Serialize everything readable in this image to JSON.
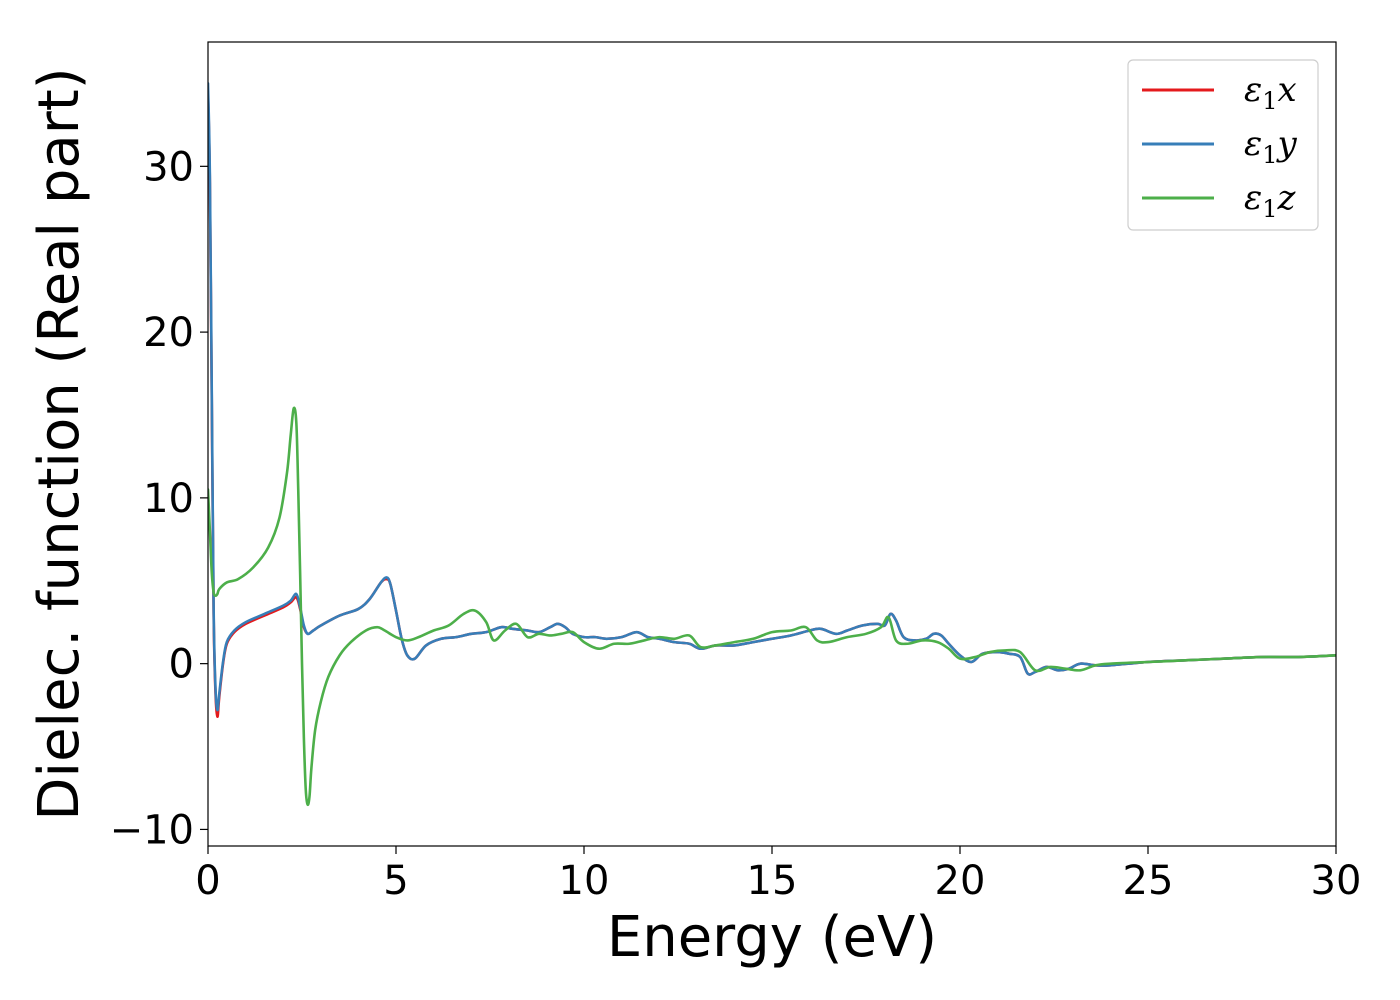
{
  "chart_data": {
    "type": "line",
    "title": "",
    "xlabel": "Energy (eV)",
    "ylabel": "Dielec. function (Real part)",
    "xlim": [
      0,
      30
    ],
    "ylim": [
      -11,
      37.5
    ],
    "xticks": [
      0,
      5,
      10,
      15,
      20,
      25,
      30
    ],
    "xtick_labels": [
      "0",
      "5",
      "10",
      "15",
      "20",
      "25",
      "30"
    ],
    "yticks": [
      -10,
      0,
      10,
      20,
      30
    ],
    "ytick_labels": [
      "−10",
      "0",
      "10",
      "20",
      "30"
    ],
    "grid": false,
    "legend_position": "top-right",
    "series": [
      {
        "name": "ε₁x",
        "legend": {
          "base": "ε",
          "sub": "1",
          "axis": "x"
        },
        "color": "#e41a1c",
        "x": [
          0.0,
          0.05,
          0.1,
          0.15,
          0.2,
          0.25,
          0.3,
          0.4,
          0.5,
          0.7,
          1.0,
          1.5,
          2.0,
          2.2,
          2.35,
          2.45,
          2.55,
          2.65,
          2.8,
          3.0,
          3.5,
          4.0,
          4.3,
          4.6,
          4.75,
          4.85,
          5.0,
          5.15,
          5.3,
          5.5,
          5.8,
          6.2,
          6.6,
          7.0,
          7.4,
          7.8,
          8.1,
          8.5,
          8.8,
          9.1,
          9.3,
          9.5,
          9.7,
          10.0,
          10.3,
          10.6,
          11.0,
          11.4,
          11.7,
          12.0,
          12.4,
          12.8,
          13.1,
          13.5,
          14.0,
          14.5,
          15.0,
          15.5,
          16.0,
          16.3,
          16.7,
          17.0,
          17.4,
          17.8,
          18.0,
          18.15,
          18.3,
          18.5,
          18.8,
          19.1,
          19.3,
          19.5,
          19.7,
          20.0,
          20.3,
          20.6,
          21.0,
          21.3,
          21.6,
          21.8,
          22.0,
          22.3,
          22.6,
          22.9,
          23.2,
          23.6,
          24.0,
          25.0,
          26.0,
          27.0,
          28.0,
          29.0,
          30.0
        ],
        "y": [
          34.5,
          29.0,
          16.0,
          3.0,
          -1.8,
          -3.2,
          -2.0,
          0.0,
          1.2,
          1.9,
          2.4,
          2.9,
          3.4,
          3.7,
          4.0,
          3.3,
          2.2,
          1.8,
          2.0,
          2.3,
          2.9,
          3.3,
          3.9,
          4.9,
          5.1,
          4.8,
          3.2,
          1.5,
          0.5,
          0.3,
          1.1,
          1.5,
          1.6,
          1.8,
          1.9,
          2.2,
          2.1,
          2.0,
          1.9,
          2.2,
          2.4,
          2.2,
          1.8,
          1.6,
          1.6,
          1.5,
          1.6,
          1.9,
          1.6,
          1.5,
          1.3,
          1.2,
          0.9,
          1.1,
          1.1,
          1.3,
          1.5,
          1.7,
          2.0,
          2.1,
          1.8,
          2.0,
          2.3,
          2.4,
          2.3,
          3.0,
          2.6,
          1.6,
          1.4,
          1.5,
          1.8,
          1.7,
          1.2,
          0.5,
          0.1,
          0.6,
          0.7,
          0.6,
          0.4,
          -0.6,
          -0.5,
          -0.2,
          -0.4,
          -0.3,
          0.0,
          -0.1,
          -0.1,
          0.1,
          0.2,
          0.3,
          0.4,
          0.4,
          0.5
        ]
      },
      {
        "name": "ε₁y",
        "legend": {
          "base": "ε",
          "sub": "1",
          "axis": "y"
        },
        "color": "#377eb8",
        "x": [
          0.0,
          0.05,
          0.1,
          0.15,
          0.2,
          0.25,
          0.3,
          0.4,
          0.5,
          0.7,
          1.0,
          1.5,
          2.0,
          2.2,
          2.35,
          2.45,
          2.55,
          2.65,
          2.8,
          3.0,
          3.5,
          4.0,
          4.3,
          4.6,
          4.75,
          4.85,
          5.0,
          5.15,
          5.3,
          5.5,
          5.8,
          6.2,
          6.6,
          7.0,
          7.4,
          7.8,
          8.1,
          8.5,
          8.8,
          9.1,
          9.3,
          9.5,
          9.7,
          10.0,
          10.3,
          10.6,
          11.0,
          11.4,
          11.7,
          12.0,
          12.4,
          12.8,
          13.1,
          13.5,
          14.0,
          14.5,
          15.0,
          15.5,
          16.0,
          16.3,
          16.7,
          17.0,
          17.4,
          17.8,
          18.0,
          18.15,
          18.3,
          18.5,
          18.8,
          19.1,
          19.3,
          19.5,
          19.7,
          20.0,
          20.3,
          20.6,
          21.0,
          21.3,
          21.6,
          21.8,
          22.0,
          22.3,
          22.6,
          22.9,
          23.2,
          23.6,
          24.0,
          25.0,
          26.0,
          27.0,
          28.0,
          29.0,
          30.0
        ],
        "y": [
          35.0,
          29.5,
          16.5,
          3.3,
          -1.5,
          -2.8,
          -1.8,
          0.1,
          1.3,
          2.0,
          2.5,
          3.0,
          3.5,
          3.8,
          4.2,
          3.4,
          2.3,
          1.8,
          2.0,
          2.3,
          2.9,
          3.3,
          3.9,
          4.9,
          5.2,
          4.8,
          3.2,
          1.5,
          0.5,
          0.3,
          1.1,
          1.5,
          1.6,
          1.8,
          1.9,
          2.2,
          2.1,
          2.0,
          1.9,
          2.2,
          2.4,
          2.2,
          1.8,
          1.6,
          1.6,
          1.5,
          1.6,
          1.9,
          1.6,
          1.5,
          1.3,
          1.2,
          0.9,
          1.1,
          1.1,
          1.3,
          1.5,
          1.7,
          2.0,
          2.1,
          1.8,
          2.0,
          2.3,
          2.4,
          2.3,
          3.0,
          2.6,
          1.6,
          1.4,
          1.5,
          1.8,
          1.7,
          1.2,
          0.5,
          0.1,
          0.6,
          0.7,
          0.6,
          0.4,
          -0.6,
          -0.5,
          -0.2,
          -0.4,
          -0.3,
          0.0,
          -0.1,
          -0.1,
          0.1,
          0.2,
          0.3,
          0.4,
          0.4,
          0.5
        ]
      },
      {
        "name": "ε₁z",
        "legend": {
          "base": "ε",
          "sub": "1",
          "axis": "z"
        },
        "color": "#4daf4a",
        "x": [
          0.0,
          0.05,
          0.1,
          0.15,
          0.2,
          0.25,
          0.3,
          0.5,
          0.8,
          1.2,
          1.6,
          1.9,
          2.1,
          2.2,
          2.28,
          2.35,
          2.4,
          2.45,
          2.5,
          2.55,
          2.6,
          2.65,
          2.7,
          2.75,
          2.85,
          3.0,
          3.2,
          3.5,
          3.8,
          4.2,
          4.5,
          4.7,
          5.0,
          5.3,
          5.6,
          6.0,
          6.4,
          6.8,
          7.1,
          7.4,
          7.6,
          7.9,
          8.2,
          8.5,
          8.8,
          9.1,
          9.4,
          9.7,
          10.0,
          10.4,
          10.8,
          11.2,
          11.6,
          12.0,
          12.4,
          12.8,
          13.1,
          13.5,
          14.0,
          14.5,
          15.0,
          15.5,
          15.9,
          16.2,
          16.5,
          17.0,
          17.5,
          17.9,
          18.1,
          18.3,
          18.6,
          19.0,
          19.4,
          19.7,
          20.0,
          20.4,
          20.8,
          21.2,
          21.6,
          22.0,
          22.4,
          22.8,
          23.2,
          23.6,
          24.0,
          25.0,
          26.0,
          27.0,
          28.0,
          29.0,
          30.0
        ],
        "y": [
          10.5,
          8.0,
          5.5,
          4.3,
          4.1,
          4.2,
          4.5,
          4.9,
          5.1,
          5.8,
          7.0,
          8.8,
          11.5,
          13.8,
          15.4,
          14.5,
          10.5,
          5.5,
          0.0,
          -4.5,
          -7.6,
          -8.5,
          -8.0,
          -6.3,
          -4.0,
          -2.3,
          -0.8,
          0.5,
          1.3,
          2.0,
          2.2,
          2.0,
          1.6,
          1.4,
          1.6,
          2.0,
          2.3,
          3.0,
          3.2,
          2.5,
          1.4,
          2.0,
          2.4,
          1.6,
          1.8,
          1.7,
          1.8,
          1.9,
          1.3,
          0.9,
          1.2,
          1.2,
          1.4,
          1.6,
          1.5,
          1.7,
          1.0,
          1.1,
          1.3,
          1.5,
          1.9,
          2.0,
          2.2,
          1.4,
          1.3,
          1.6,
          1.8,
          2.2,
          2.8,
          1.4,
          1.2,
          1.4,
          1.3,
          0.9,
          0.3,
          0.4,
          0.7,
          0.8,
          0.7,
          -0.4,
          -0.2,
          -0.3,
          -0.4,
          -0.1,
          0.0,
          0.1,
          0.2,
          0.3,
          0.4,
          0.4,
          0.5
        ]
      }
    ]
  }
}
